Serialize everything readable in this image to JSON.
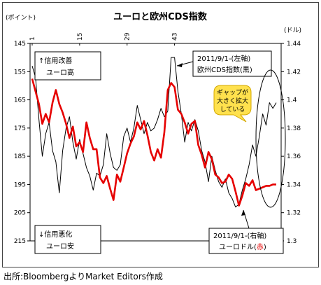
{
  "source": "出所:BloombergよりMarket Editors作成",
  "chart_data": {
    "type": "line",
    "title": "ユーロと欧州CDS指数",
    "left_unit": "(ポイント)",
    "right_unit": "(ドル)",
    "x_ticks": [
      {
        "value": 1,
        "label": "1"
      },
      {
        "value": 15,
        "label": "15"
      },
      {
        "value": 29,
        "label": "29"
      },
      {
        "value": 43,
        "label": "43"
      }
    ],
    "left_axis": {
      "min": 145,
      "max": 215,
      "reversed": true,
      "ticks": [
        145,
        155,
        165,
        175,
        185,
        195,
        205,
        215
      ]
    },
    "right_axis": {
      "min": 1.3,
      "max": 1.44,
      "ticks": [
        "1.44",
        "1.42",
        "1.4",
        "1.38",
        "1.36",
        "1.34",
        "1.32",
        "1.3"
      ]
    },
    "series": [
      {
        "axis": "left",
        "color": "#000000",
        "points": [
          [
            0,
            153
          ],
          [
            1,
            157
          ],
          [
            2,
            172
          ],
          [
            3,
            185
          ],
          [
            4,
            177
          ],
          [
            5,
            173
          ],
          [
            6,
            183
          ],
          [
            7,
            187
          ],
          [
            8,
            198
          ],
          [
            9,
            183
          ],
          [
            10,
            175
          ],
          [
            11,
            171
          ],
          [
            12,
            180
          ],
          [
            13,
            186
          ],
          [
            14,
            179
          ],
          [
            15,
            184
          ],
          [
            16,
            189
          ],
          [
            17,
            192
          ],
          [
            18,
            197
          ],
          [
            19,
            191
          ],
          [
            20,
            192
          ],
          [
            21,
            188
          ],
          [
            22,
            177
          ],
          [
            23,
            184
          ],
          [
            24,
            189
          ],
          [
            25,
            190
          ],
          [
            26,
            188
          ],
          [
            27,
            178
          ],
          [
            28,
            175
          ],
          [
            29,
            180
          ],
          [
            30,
            175
          ],
          [
            31,
            167
          ],
          [
            32,
            172
          ],
          [
            33,
            177
          ],
          [
            34,
            173
          ],
          [
            35,
            176
          ],
          [
            36,
            175
          ],
          [
            37,
            172
          ],
          [
            38,
            168
          ],
          [
            39,
            171
          ],
          [
            40,
            169
          ],
          [
            41,
            150
          ],
          [
            42,
            150
          ],
          [
            43,
            162
          ],
          [
            44,
            170
          ],
          [
            45,
            180
          ],
          [
            46,
            173
          ],
          [
            47,
            176
          ],
          [
            48,
            172
          ],
          [
            49,
            176
          ],
          [
            50,
            183
          ],
          [
            51,
            187
          ],
          [
            52,
            194
          ],
          [
            53,
            185
          ],
          [
            54,
            190
          ],
          [
            55,
            194
          ],
          [
            56,
            196
          ],
          [
            57,
            193
          ],
          [
            58,
            198
          ],
          [
            59,
            200
          ],
          [
            60,
            203
          ],
          [
            61,
            202
          ],
          [
            62,
            197
          ],
          [
            63,
            193
          ],
          [
            64,
            188
          ],
          [
            65,
            181
          ],
          [
            66,
            185
          ],
          [
            67,
            178
          ],
          [
            68,
            170
          ],
          [
            69,
            174
          ],
          [
            70,
            166
          ],
          [
            71,
            168
          ],
          [
            72,
            166
          ]
        ]
      },
      {
        "axis": "right",
        "color": "#e60000",
        "points": [
          [
            0,
            1.415
          ],
          [
            1,
            1.406
          ],
          [
            2,
            1.397
          ],
          [
            3,
            1.383
          ],
          [
            4,
            1.39
          ],
          [
            5,
            1.384
          ],
          [
            6,
            1.398
          ],
          [
            7,
            1.407
          ],
          [
            8,
            1.397
          ],
          [
            9,
            1.391
          ],
          [
            10,
            1.383
          ],
          [
            11,
            1.373
          ],
          [
            12,
            1.381
          ],
          [
            13,
            1.367
          ],
          [
            14,
            1.37
          ],
          [
            15,
            1.363
          ],
          [
            16,
            1.384
          ],
          [
            17,
            1.373
          ],
          [
            18,
            1.365
          ],
          [
            19,
            1.365
          ],
          [
            20,
            1.345
          ],
          [
            21,
            1.341
          ],
          [
            22,
            1.346
          ],
          [
            23,
            1.337
          ],
          [
            24,
            1.329
          ],
          [
            25,
            1.347
          ],
          [
            26,
            1.342
          ],
          [
            27,
            1.352
          ],
          [
            28,
            1.362
          ],
          [
            29,
            1.369
          ],
          [
            30,
            1.374
          ],
          [
            31,
            1.384
          ],
          [
            32,
            1.379
          ],
          [
            33,
            1.385
          ],
          [
            34,
            1.375
          ],
          [
            35,
            1.363
          ],
          [
            36,
            1.357
          ],
          [
            37,
            1.365
          ],
          [
            38,
            1.359
          ],
          [
            39,
            1.377
          ],
          [
            40,
            1.407
          ],
          [
            41,
            1.412
          ],
          [
            42,
            1.409
          ],
          [
            43,
            1.393
          ],
          [
            44,
            1.39
          ],
          [
            45,
            1.384
          ],
          [
            46,
            1.376
          ],
          [
            47,
            1.383
          ],
          [
            48,
            1.385
          ],
          [
            49,
            1.368
          ],
          [
            50,
            1.361
          ],
          [
            51,
            1.352
          ],
          [
            52,
            1.363
          ],
          [
            53,
            1.358
          ],
          [
            54,
            1.347
          ],
          [
            55,
            1.345
          ],
          [
            56,
            1.341
          ],
          [
            57,
            1.342
          ],
          [
            58,
            1.347
          ],
          [
            59,
            1.344
          ],
          [
            60,
            1.335
          ],
          [
            61,
            1.325
          ],
          [
            62,
            1.332
          ],
          [
            63,
            1.341
          ],
          [
            64,
            1.339
          ],
          [
            65,
            1.343
          ],
          [
            66,
            1.336
          ],
          [
            67,
            1.337
          ],
          [
            68,
            1.338
          ],
          [
            69,
            1.339
          ],
          [
            70,
            1.339
          ],
          [
            71,
            1.34
          ],
          [
            72,
            1.34
          ]
        ]
      }
    ],
    "annotations": {
      "top_left": [
        "↑信用改善",
        "ユーロ高"
      ],
      "bottom_left": [
        "↓信用悪化",
        "ユーロ安"
      ],
      "callout_top": [
        "2011/9/1-(左軸)",
        "欧州CDS指数(黒)"
      ],
      "callout_bottom_line1": "2011/9/1-(右軸)",
      "callout_bottom_line2a": "ユーロドル(",
      "callout_bottom_line2b": "赤",
      "callout_bottom_line2c": ")",
      "bubble": [
        "ギャップが",
        "大きく拡大",
        "している"
      ]
    }
  }
}
